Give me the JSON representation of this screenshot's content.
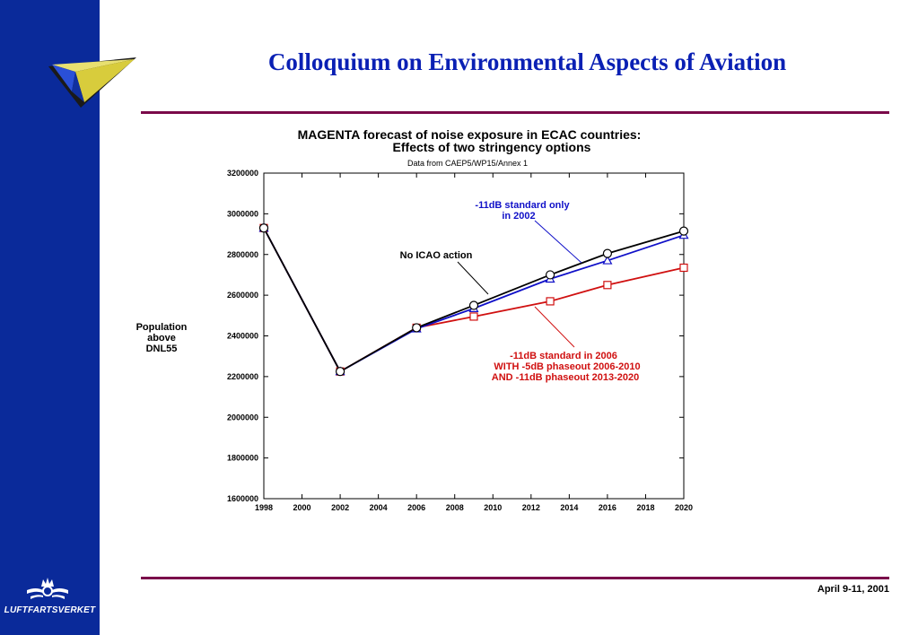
{
  "header": {
    "title": "Colloquium on Environmental Aspects of Aviation"
  },
  "footer": {
    "date": "April 9-11, 2001",
    "brand": "LUFTFARTSVERKET"
  },
  "colors": {
    "sidebar": "#0a2a9a",
    "title": "#0a20b4",
    "rule": "#7a0a4a",
    "series_no_icao": "#000000",
    "series_11db_2002": "#1010c8",
    "series_11db_2006": "#d01010"
  },
  "icons": {
    "logo": "paper-plane-icon",
    "crest": "crown-wings-icon"
  },
  "chart_data": {
    "type": "line",
    "title_line1": "MAGENTA forecast of noise exposure in ECAC countries:",
    "title_line2": "Effects of two stringency options",
    "subtitle": "Data from CAEP5/WP15/Annex 1",
    "ylabel": [
      "Population",
      "above",
      "DNL55"
    ],
    "xlabel": "",
    "xlim": [
      1998,
      2020
    ],
    "ylim": [
      1600000,
      3200000
    ],
    "x_ticks": [
      1998,
      2000,
      2002,
      2004,
      2006,
      2008,
      2010,
      2012,
      2014,
      2016,
      2018,
      2020
    ],
    "y_ticks": [
      1600000,
      1800000,
      2000000,
      2200000,
      2400000,
      2600000,
      2800000,
      3000000,
      3200000
    ],
    "tick_labels_x": [
      "1998",
      "2000",
      "2002",
      "2004",
      "2006",
      "2008",
      "2010",
      "2012",
      "2014",
      "2016",
      "2018",
      "2020"
    ],
    "tick_labels_y": [
      "1600000",
      "1800000",
      "2000000",
      "2200000",
      "2400000",
      "2600000",
      "2800000",
      "3000000",
      "3200000"
    ],
    "grid": false,
    "series": [
      {
        "key": "no_icao",
        "marker": "circle",
        "x": [
          1998,
          2002,
          2006,
          2009,
          2013,
          2016,
          2020
        ],
        "y": [
          2930000,
          2225000,
          2440000,
          2550000,
          2700000,
          2805000,
          2915000
        ]
      },
      {
        "key": "std_2002",
        "marker": "triangle",
        "x": [
          1998,
          2002,
          2006,
          2009,
          2013,
          2016,
          2020
        ],
        "y": [
          2930000,
          2225000,
          2435000,
          2535000,
          2680000,
          2770000,
          2895000
        ]
      },
      {
        "key": "std_2006",
        "marker": "square",
        "x": [
          1998,
          2002,
          2006,
          2009,
          2013,
          2016,
          2020
        ],
        "y": [
          2930000,
          2225000,
          2440000,
          2495000,
          2570000,
          2650000,
          2735000
        ]
      }
    ],
    "annotations": {
      "no_icao": "No ICAO action",
      "std_2002_line1": "-11dB standard only",
      "std_2002_line2": "in 2002",
      "std_2006_line1": "-11dB standard in 2006",
      "std_2006_line2": "WITH -5dB phaseout 2006-2010",
      "std_2006_line3": "AND -11dB phaseout 2013-2020"
    }
  }
}
